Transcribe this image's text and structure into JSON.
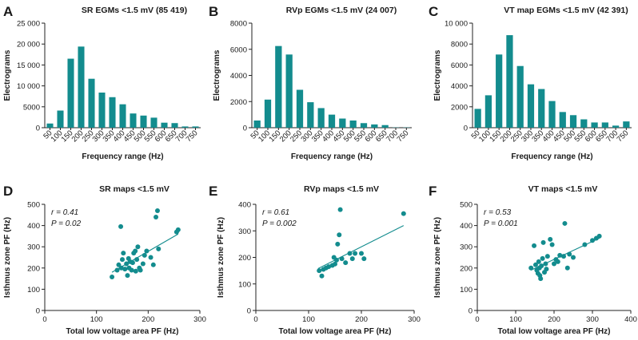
{
  "colors": {
    "bar": "#138c8e",
    "point": "#138c8e",
    "line": "#138c8e",
    "axis": "#222222"
  },
  "chart_data": [
    {
      "panel": "A",
      "type": "bar",
      "title": "SR EGMs <1.5 mV (85 419)",
      "xlabel": "Frequency range (Hz)",
      "ylabel": "Electrograms",
      "categories": [
        "50",
        "100",
        "150",
        "200",
        "250",
        "300",
        "350",
        "400",
        "450",
        "500",
        "550",
        "600",
        "650",
        "700",
        "750"
      ],
      "values": [
        1000,
        4100,
        16500,
        19400,
        11700,
        8400,
        7300,
        5600,
        3400,
        2900,
        2400,
        1200,
        1100,
        300,
        300
      ],
      "ylim": [
        0,
        25000
      ],
      "yticks": [
        0,
        5000,
        10000,
        15000,
        20000,
        25000
      ],
      "ytick_labels": [
        "0",
        "5000",
        "10 000",
        "15 000",
        "20 000",
        "25 000"
      ]
    },
    {
      "panel": "B",
      "type": "bar",
      "title": "RVp EGMs <1.5 mV (24 007)",
      "xlabel": "Frequency range (Hz)",
      "ylabel": "Electrograms",
      "categories": [
        "50",
        "100",
        "150",
        "200",
        "250",
        "300",
        "350",
        "400",
        "450",
        "500",
        "550",
        "600",
        "650",
        "700",
        "750"
      ],
      "values": [
        550,
        2150,
        6250,
        5600,
        2900,
        1950,
        1500,
        1000,
        700,
        550,
        350,
        250,
        200,
        20,
        20
      ],
      "ylim": [
        0,
        8000
      ],
      "yticks": [
        0,
        2000,
        4000,
        6000,
        8000
      ],
      "ytick_labels": [
        "0",
        "2000",
        "4000",
        "6000",
        "8000"
      ]
    },
    {
      "panel": "C",
      "type": "bar",
      "title": "VT map EGMs <1.5 mV (42 391)",
      "xlabel": "Frequency range (Hz)",
      "ylabel": "Electrograms",
      "categories": [
        "50",
        "100",
        "150",
        "200",
        "250",
        "300",
        "350",
        "400",
        "450",
        "500",
        "550",
        "600",
        "650",
        "700",
        "750"
      ],
      "values": [
        1800,
        3100,
        7000,
        8850,
        5900,
        4150,
        3700,
        2550,
        1500,
        1200,
        800,
        500,
        500,
        200,
        600
      ],
      "ylim": [
        0,
        10000
      ],
      "yticks": [
        0,
        2000,
        4000,
        6000,
        8000,
        10000
      ],
      "ytick_labels": [
        "0",
        "2000",
        "4000",
        "6000",
        "8000",
        "10 000"
      ]
    },
    {
      "panel": "D",
      "type": "scatter",
      "title": "SR maps <1.5 mV",
      "xlabel": "Total low voltage area PF (Hz)",
      "ylabel": "Isthmus zone PF (Hz)",
      "xlim": [
        0,
        300
      ],
      "ylim": [
        0,
        500
      ],
      "xticks": [
        0,
        100,
        200,
        300
      ],
      "yticks": [
        0,
        100,
        200,
        300,
        400,
        500
      ],
      "r_label": "r = 0.41",
      "p_label": "P = 0.02",
      "fit": {
        "x1": 130,
        "y1": 180,
        "x2": 258,
        "y2": 360
      },
      "points": [
        [
          130,
          158
        ],
        [
          140,
          190
        ],
        [
          143,
          215
        ],
        [
          147,
          395
        ],
        [
          148,
          200
        ],
        [
          150,
          240
        ],
        [
          152,
          270
        ],
        [
          155,
          195
        ],
        [
          158,
          220
        ],
        [
          160,
          165
        ],
        [
          162,
          245
        ],
        [
          163,
          200
        ],
        [
          165,
          230
        ],
        [
          168,
          190
        ],
        [
          170,
          225
        ],
        [
          172,
          270
        ],
        [
          175,
          280
        ],
        [
          176,
          185
        ],
        [
          178,
          240
        ],
        [
          180,
          300
        ],
        [
          183,
          200
        ],
        [
          185,
          190
        ],
        [
          190,
          220
        ],
        [
          193,
          260
        ],
        [
          197,
          280
        ],
        [
          205,
          250
        ],
        [
          210,
          215
        ],
        [
          215,
          440
        ],
        [
          218,
          470
        ],
        [
          220,
          290
        ],
        [
          255,
          370
        ],
        [
          258,
          380
        ]
      ]
    },
    {
      "panel": "E",
      "type": "scatter",
      "title": "RVp maps <1.5 mV",
      "xlabel": "Total low voltage area PF (Hz)",
      "ylabel": "Isthmus zone PF (Hz)",
      "xlim": [
        0,
        300
      ],
      "ylim": [
        0,
        400
      ],
      "xticks": [
        0,
        100,
        200,
        300
      ],
      "yticks": [
        0,
        100,
        200,
        300,
        400
      ],
      "r_label": "r = 0.61",
      "p_label": "P = 0.002",
      "fit": {
        "x1": 118,
        "y1": 158,
        "x2": 280,
        "y2": 320
      },
      "points": [
        [
          120,
          150
        ],
        [
          125,
          130
        ],
        [
          128,
          155
        ],
        [
          133,
          160
        ],
        [
          138,
          165
        ],
        [
          145,
          170
        ],
        [
          148,
          200
        ],
        [
          150,
          175
        ],
        [
          153,
          190
        ],
        [
          155,
          250
        ],
        [
          158,
          285
        ],
        [
          160,
          380
        ],
        [
          163,
          195
        ],
        [
          170,
          180
        ],
        [
          178,
          215
        ],
        [
          183,
          195
        ],
        [
          188,
          215
        ],
        [
          200,
          215
        ],
        [
          205,
          195
        ],
        [
          280,
          365
        ]
      ]
    },
    {
      "panel": "F",
      "type": "scatter",
      "title": "VT maps <1.5 mV",
      "xlabel": "Total low voltage area PF (Hz)",
      "ylabel": "Isthmus zone PF (Hz)",
      "xlim": [
        0,
        400
      ],
      "ylim": [
        0,
        500
      ],
      "xticks": [
        0,
        100,
        200,
        300,
        400
      ],
      "yticks": [
        0,
        100,
        200,
        300,
        400,
        500
      ],
      "r_label": "r = 0.53",
      "p_label": "P = 0.001",
      "fit": {
        "x1": 140,
        "y1": 190,
        "x2": 318,
        "y2": 340
      },
      "points": [
        [
          140,
          200
        ],
        [
          148,
          305
        ],
        [
          152,
          215
        ],
        [
          155,
          190
        ],
        [
          158,
          175
        ],
        [
          160,
          230
        ],
        [
          162,
          200
        ],
        [
          163,
          165
        ],
        [
          165,
          150
        ],
        [
          167,
          210
        ],
        [
          170,
          245
        ],
        [
          172,
          320
        ],
        [
          175,
          180
        ],
        [
          178,
          220
        ],
        [
          180,
          195
        ],
        [
          183,
          255
        ],
        [
          190,
          335
        ],
        [
          195,
          310
        ],
        [
          200,
          220
        ],
        [
          205,
          240
        ],
        [
          210,
          230
        ],
        [
          215,
          260
        ],
        [
          225,
          255
        ],
        [
          228,
          410
        ],
        [
          235,
          200
        ],
        [
          240,
          265
        ],
        [
          250,
          250
        ],
        [
          280,
          310
        ],
        [
          300,
          330
        ],
        [
          310,
          340
        ],
        [
          318,
          350
        ]
      ]
    }
  ]
}
